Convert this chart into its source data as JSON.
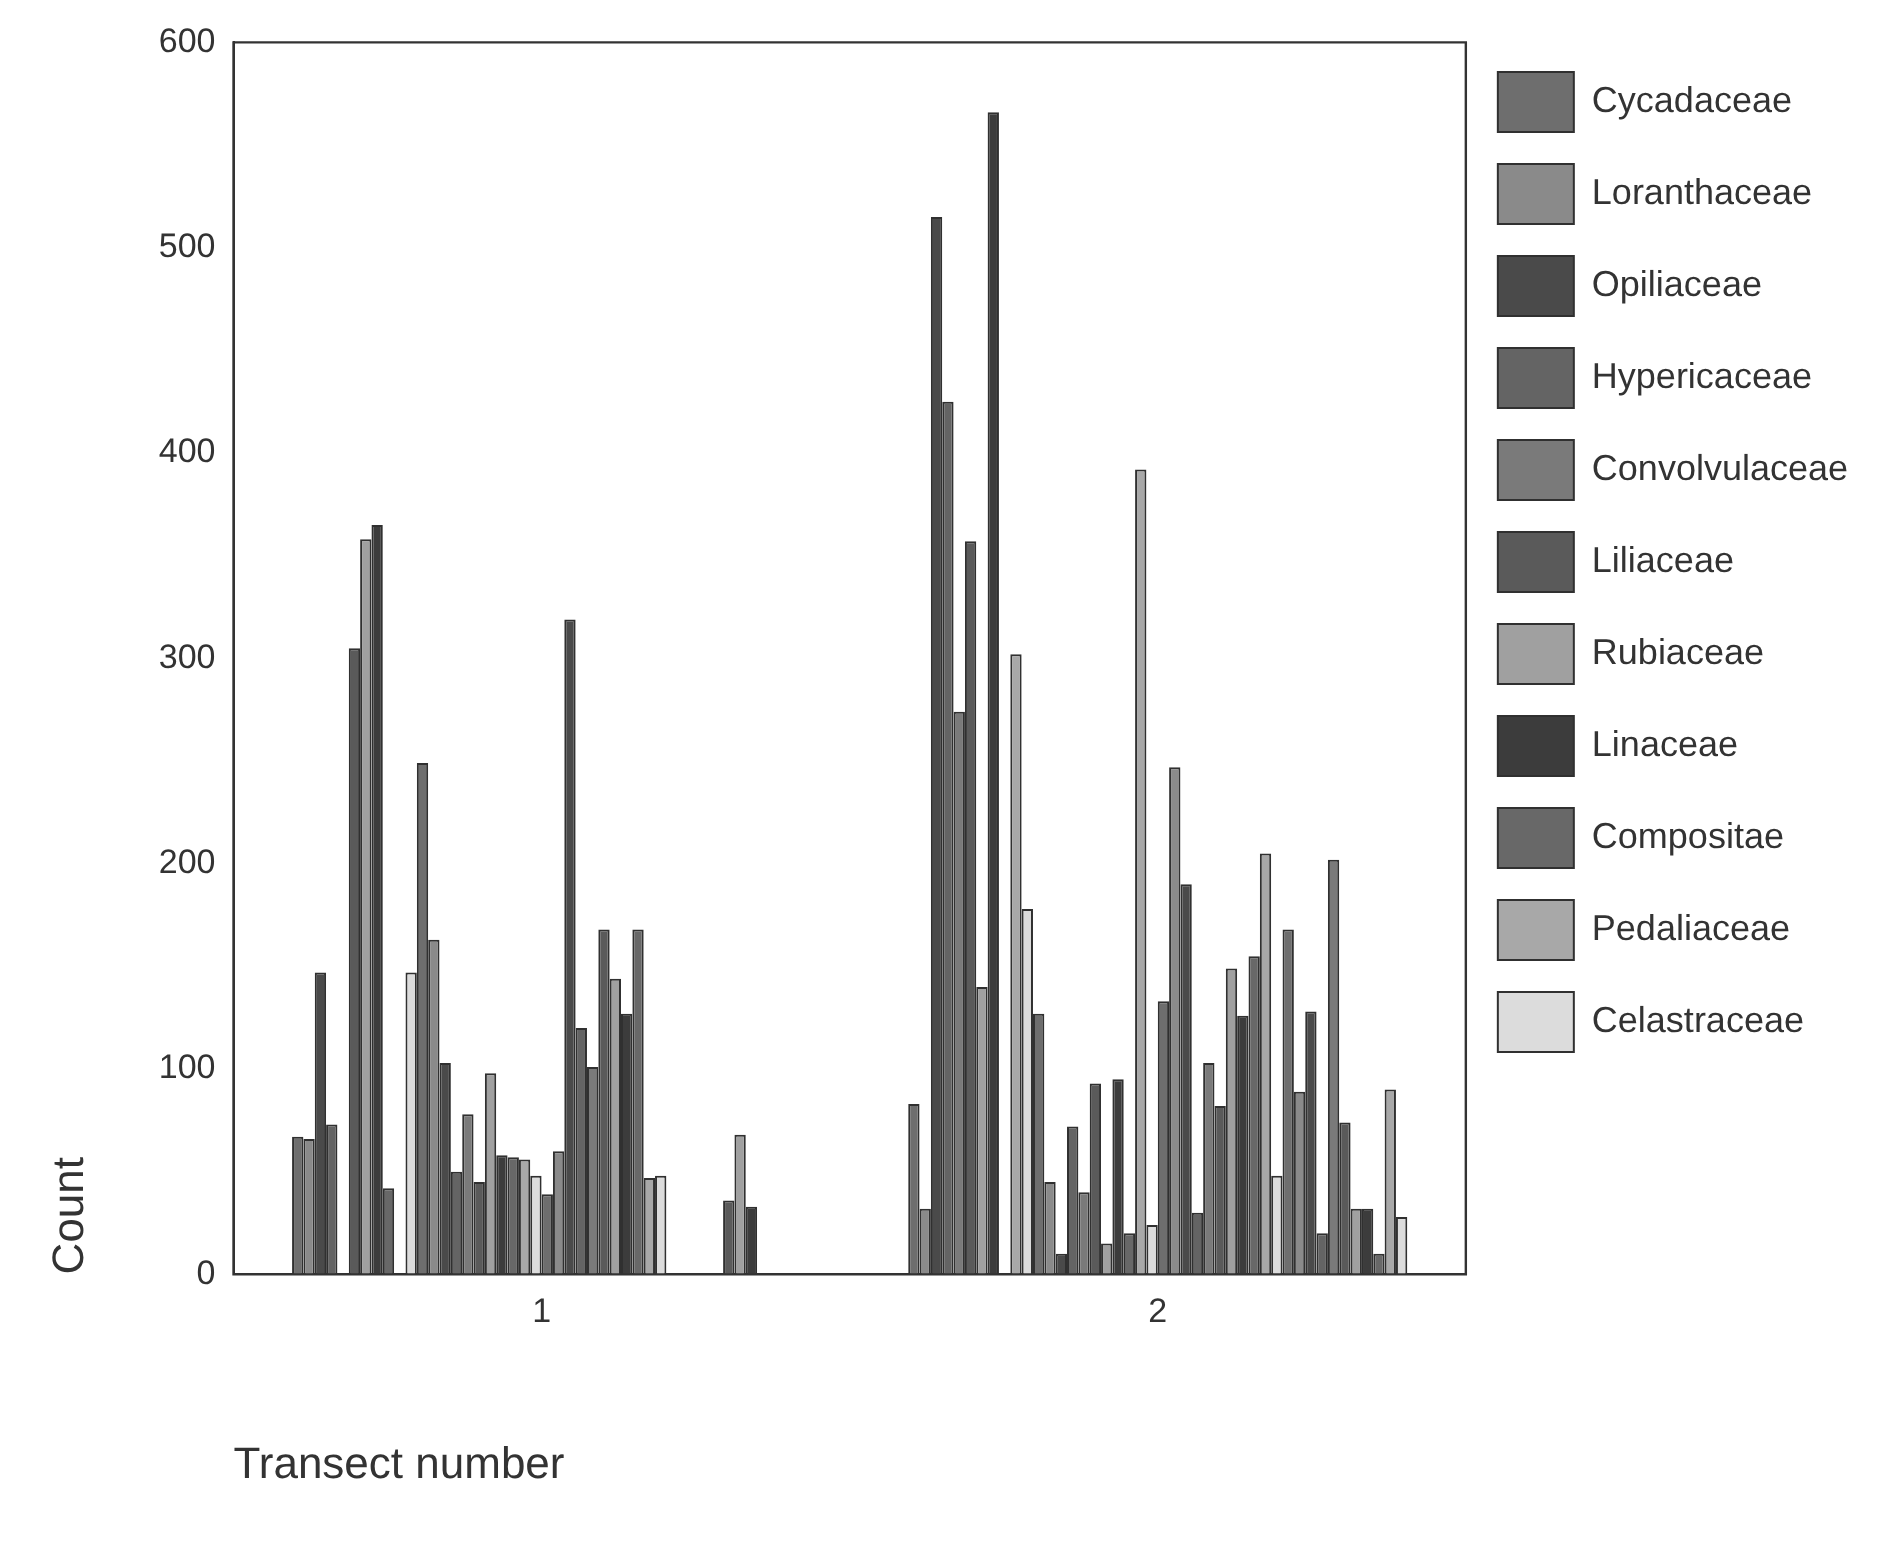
{
  "chart_data": {
    "type": "bar",
    "xlabel": "Transect number",
    "ylabel": "Count",
    "categories": [
      "1",
      "2"
    ],
    "ylim": [
      0,
      600
    ],
    "yticks": [
      0,
      100,
      200,
      300,
      400,
      500,
      600
    ],
    "legend": "right",
    "series": [
      {
        "name": "Cycadaceae",
        "color": "#6e6e6e",
        "values": [
          67,
          83
        ]
      },
      {
        "name": "Loranthaceae",
        "color": "#8a8a8a",
        "values": [
          66,
          32
        ]
      },
      {
        "name": "Opiliaceae",
        "color": "#4a4a4a",
        "values": [
          147,
          515
        ]
      },
      {
        "name": "Hypericaceae",
        "color": "#646464",
        "values": [
          73,
          425
        ]
      },
      {
        "name": "Convolvulaceae",
        "color": "#7a7a7a",
        "values": [
          0,
          274
        ]
      },
      {
        "name": "Liliaceae",
        "color": "#5a5a5a",
        "values": [
          305,
          357
        ]
      },
      {
        "name": "Rubiaceae",
        "color": "#a0a0a0",
        "values": [
          358,
          140
        ]
      },
      {
        "name": "Linaceae",
        "color": "#3c3c3c",
        "values": [
          365,
          566
        ]
      },
      {
        "name": "Compositae",
        "color": "#686868",
        "values": [
          42,
          0
        ]
      },
      {
        "name": "Pedaliaceae",
        "color": "#a8a8a8",
        "values": [
          0,
          302
        ]
      },
      {
        "name": "Celastraceae",
        "color": "#dcdcdc",
        "values": [
          147,
          178
        ]
      },
      {
        "color": "#6e6e6e",
        "values": [
          249,
          127
        ]
      },
      {
        "color": "#8a8a8a",
        "values": [
          163,
          45
        ]
      },
      {
        "color": "#4a4a4a",
        "values": [
          103,
          10
        ]
      },
      {
        "color": "#646464",
        "values": [
          50,
          72
        ]
      },
      {
        "color": "#7a7a7a",
        "values": [
          78,
          40
        ]
      },
      {
        "color": "#5a5a5a",
        "values": [
          45,
          93
        ]
      },
      {
        "color": "#a0a0a0",
        "values": [
          98,
          15
        ]
      },
      {
        "color": "#3c3c3c",
        "values": [
          58,
          95
        ]
      },
      {
        "color": "#686868",
        "values": [
          57,
          20
        ]
      },
      {
        "color": "#a8a8a8",
        "values": [
          56,
          392
        ]
      },
      {
        "color": "#dcdcdc",
        "values": [
          48,
          24
        ]
      },
      {
        "color": "#6e6e6e",
        "values": [
          39,
          133
        ]
      },
      {
        "color": "#8a8a8a",
        "values": [
          60,
          247
        ]
      },
      {
        "color": "#4a4a4a",
        "values": [
          319,
          190
        ]
      },
      {
        "color": "#646464",
        "values": [
          120,
          30
        ]
      },
      {
        "color": "#7a7a7a",
        "values": [
          101,
          103
        ]
      },
      {
        "color": "#5a5a5a",
        "values": [
          168,
          82
        ]
      },
      {
        "color": "#a0a0a0",
        "values": [
          144,
          149
        ]
      },
      {
        "color": "#3c3c3c",
        "values": [
          127,
          126
        ]
      },
      {
        "color": "#686868",
        "values": [
          168,
          155
        ]
      },
      {
        "color": "#a8a8a8",
        "values": [
          47,
          205
        ]
      },
      {
        "color": "#dcdcdc",
        "values": [
          48,
          48
        ]
      },
      {
        "color": "#6e6e6e",
        "values": [
          0,
          168
        ]
      },
      {
        "color": "#8a8a8a",
        "values": [
          0,
          89
        ]
      },
      {
        "color": "#4a4a4a",
        "values": [
          0,
          128
        ]
      },
      {
        "color": "#646464",
        "values": [
          0,
          20
        ]
      },
      {
        "color": "#7a7a7a",
        "values": [
          0,
          202
        ]
      },
      {
        "color": "#5a5a5a",
        "values": [
          36,
          74
        ]
      },
      {
        "color": "#a0a0a0",
        "values": [
          68,
          32
        ]
      },
      {
        "color": "#3c3c3c",
        "values": [
          33,
          32
        ]
      },
      {
        "color": "#686868",
        "values": [
          0,
          10
        ]
      },
      {
        "color": "#a8a8a8",
        "values": [
          0,
          90
        ]
      },
      {
        "color": "#dcdcdc",
        "values": [
          0,
          28
        ]
      }
    ]
  }
}
